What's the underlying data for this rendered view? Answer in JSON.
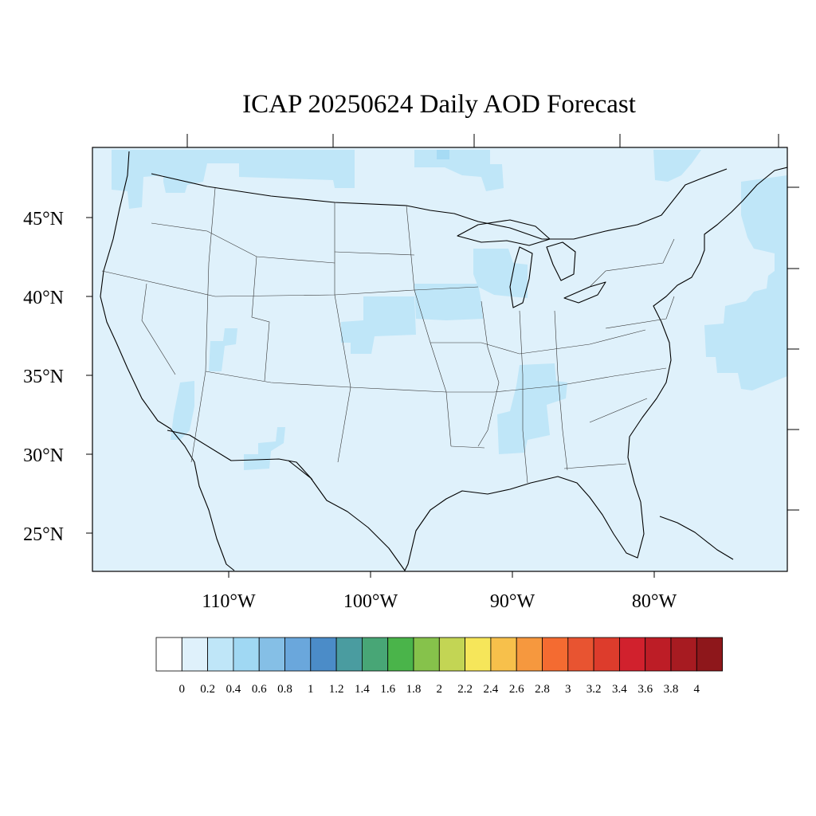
{
  "title": "ICAP 20250624 Daily AOD Forecast",
  "map": {
    "projection": "lambert-conformal-like",
    "lat_labels": [
      "45°N",
      "40°N",
      "35°N",
      "30°N",
      "25°N"
    ],
    "lat_values": [
      45,
      40,
      35,
      30,
      25
    ],
    "lon_labels": [
      "110°W",
      "100°W",
      "90°W",
      "80°W"
    ],
    "lon_values": [
      -110,
      -100,
      -90,
      -80
    ],
    "background_color": "#dff1fb",
    "highlight_color": "#bfe6f8",
    "hotspot_color": "#a6dbf4",
    "boundary_color": "#000000"
  },
  "colorbar": {
    "labels": [
      "0",
      "0.2",
      "0.4",
      "0.6",
      "0.8",
      "1",
      "1.2",
      "1.4",
      "1.6",
      "1.8",
      "2",
      "2.2",
      "2.4",
      "2.6",
      "2.8",
      "3",
      "3.2",
      "3.4",
      "3.6",
      "3.8",
      "4"
    ],
    "colors": [
      "#ffffff",
      "#dff1fb",
      "#bfe6f8",
      "#a0d8f3",
      "#85bfe6",
      "#6aa7dc",
      "#4b8cc8",
      "#4a9ca0",
      "#48a676",
      "#4ab44a",
      "#86c24b",
      "#c3d554",
      "#f6e65a",
      "#f7c04b",
      "#f6983e",
      "#f46b31",
      "#e85431",
      "#dd3c2c",
      "#d1212d",
      "#bd1d26",
      "#a71b21",
      "#8e171b"
    ]
  }
}
